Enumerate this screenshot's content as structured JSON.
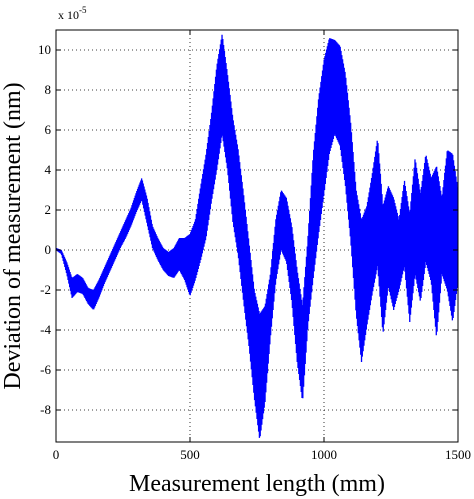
{
  "chart_data": {
    "type": "line",
    "title": "",
    "xlabel": "Measurement length (mm)",
    "ylabel": "Deviation of measurement (nm)",
    "y_exponent_label": "x 10",
    "y_exponent_power": "-5",
    "xlim": [
      0,
      1500
    ],
    "ylim": [
      -9.6,
      11
    ],
    "x_ticks": [
      0,
      500,
      1000,
      1500
    ],
    "x_tick_labels": [
      "0",
      "500",
      "1000",
      "1500"
    ],
    "y_ticks": [
      -8,
      -6,
      -4,
      -2,
      0,
      2,
      4,
      6,
      8,
      10
    ],
    "y_tick_labels": [
      "-8",
      "-6",
      "-4",
      "-2",
      "0",
      "2",
      "4",
      "6",
      "8",
      "10"
    ],
    "grid": "dotted",
    "series": [
      {
        "color": "#0000ff",
        "envelope": {
          "x": [
            0,
            20,
            40,
            60,
            80,
            100,
            120,
            140,
            160,
            180,
            200,
            220,
            240,
            260,
            280,
            300,
            320,
            340,
            360,
            380,
            400,
            420,
            440,
            460,
            480,
            500,
            520,
            540,
            560,
            580,
            600,
            620,
            640,
            660,
            680,
            700,
            720,
            740,
            760,
            780,
            800,
            820,
            840,
            860,
            880,
            900,
            920,
            940,
            960,
            980,
            1000,
            1020,
            1040,
            1060,
            1080,
            1100,
            1120,
            1140,
            1160,
            1180,
            1200,
            1220,
            1240,
            1260,
            1280,
            1300,
            1320,
            1340,
            1360,
            1380,
            1400,
            1420,
            1440,
            1460,
            1480,
            1500
          ],
          "upper": [
            0.1,
            0.0,
            -0.6,
            -1.4,
            -1.2,
            -1.4,
            -1.9,
            -2.0,
            -1.5,
            -0.9,
            -0.3,
            0.3,
            0.9,
            1.5,
            2.1,
            2.9,
            3.6,
            2.6,
            1.2,
            0.6,
            0.1,
            -0.1,
            0.1,
            0.6,
            0.6,
            0.8,
            1.5,
            3.2,
            4.8,
            6.8,
            9.2,
            10.8,
            8.8,
            6.6,
            5.0,
            2.8,
            0.4,
            -2.0,
            -3.2,
            -2.8,
            -1.2,
            1.5,
            3.0,
            2.6,
            1.2,
            -1.0,
            -2.8,
            0.6,
            4.8,
            7.6,
            9.5,
            10.6,
            10.5,
            10.2,
            8.8,
            6.3,
            3.0,
            1.5,
            2.2,
            3.8,
            5.6,
            2.2,
            3.2,
            2.6,
            1.5,
            3.5,
            1.8,
            4.6,
            2.8,
            4.8,
            3.6,
            4.2,
            2.6,
            5.0,
            4.8,
            3.0
          ],
          "lower": [
            0.0,
            -0.2,
            -1.2,
            -2.4,
            -2.1,
            -2.2,
            -2.7,
            -3.0,
            -2.4,
            -1.7,
            -1.1,
            -0.5,
            0.1,
            0.6,
            1.2,
            1.9,
            2.5,
            1.3,
            0.1,
            -0.5,
            -1.0,
            -1.3,
            -1.4,
            -1.0,
            -1.5,
            -2.3,
            -1.5,
            -0.5,
            0.6,
            2.4,
            4.0,
            5.8,
            4.0,
            1.4,
            -0.3,
            -2.6,
            -4.8,
            -7.4,
            -9.5,
            -7.6,
            -4.4,
            -1.6,
            0.0,
            -0.6,
            -2.6,
            -5.6,
            -7.6,
            -3.8,
            -1.4,
            0.8,
            2.8,
            4.8,
            5.8,
            5.2,
            3.2,
            0.4,
            -3.2,
            -5.6,
            -3.8,
            -2.2,
            -0.8,
            -4.2,
            -1.8,
            -3.0,
            -2.0,
            -0.8,
            -3.6,
            -1.2,
            -2.6,
            -0.6,
            -1.6,
            -4.4,
            -1.2,
            -2.0,
            -3.6,
            -1.6
          ]
        }
      }
    ]
  }
}
